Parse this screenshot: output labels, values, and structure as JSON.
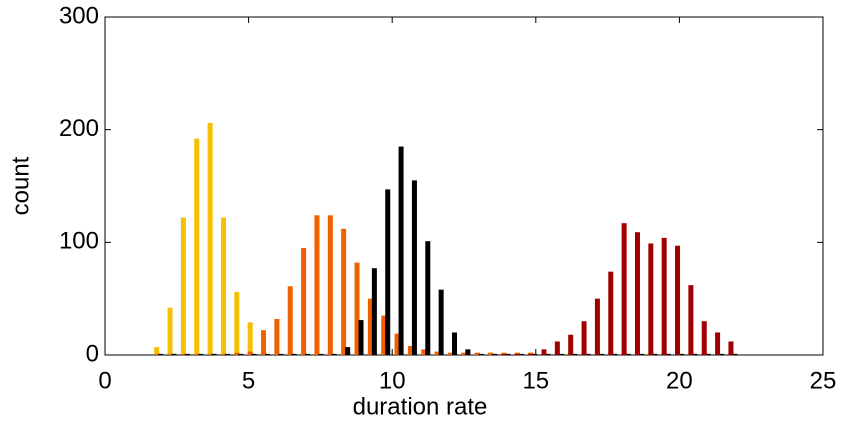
{
  "chart_data": {
    "type": "bar",
    "xlabel": "duration rate",
    "ylabel": "count",
    "x": [
      1.8,
      2.265,
      2.73,
      3.195,
      3.66,
      4.125,
      4.59,
      5.055,
      5.52,
      5.985,
      6.45,
      6.915,
      7.38,
      7.845,
      8.31,
      8.775,
      9.24,
      9.705,
      10.17,
      10.635,
      11.1,
      11.565,
      12.03,
      12.495,
      12.96,
      13.425,
      13.89,
      14.355,
      14.82,
      15.285,
      15.75,
      16.215,
      16.68,
      17.145,
      17.61,
      18.075,
      18.54,
      19.005,
      19.47,
      19.935,
      20.4,
      20.865,
      21.33,
      21.795
    ],
    "series": [
      {
        "color": "#f5c000",
        "values": [
          7,
          42,
          122,
          192,
          206,
          122,
          56,
          29,
          3,
          2,
          2,
          2,
          2,
          2,
          2,
          2,
          2,
          2,
          2,
          2,
          2,
          2,
          2,
          2,
          2,
          2,
          2,
          2,
          2,
          2,
          2,
          2,
          2,
          2,
          2,
          2,
          2,
          2,
          2,
          2,
          2,
          2,
          2,
          2
        ]
      },
      {
        "color": "#f06000",
        "values": [
          1,
          1,
          1,
          1,
          1,
          1,
          2,
          3,
          22,
          32,
          61,
          95,
          124,
          124,
          112,
          82,
          50,
          35,
          19,
          8,
          5,
          3,
          2,
          2,
          2,
          2,
          2,
          2,
          2,
          2,
          2,
          2,
          2,
          2,
          2,
          2,
          2,
          2,
          2,
          2,
          2,
          2,
          2,
          2
        ]
      },
      {
        "color": "#000000",
        "values": [
          1,
          1,
          1,
          1,
          1,
          1,
          1,
          1,
          1,
          1,
          1,
          1,
          1,
          1,
          7,
          31,
          77,
          147,
          185,
          155,
          101,
          58,
          20,
          5,
          1,
          1,
          1,
          1,
          1,
          1,
          1,
          1,
          1,
          1,
          1,
          1,
          1,
          1,
          1,
          1,
          1,
          1,
          1,
          1
        ]
      },
      {
        "color": "#a00000",
        "values": [
          0,
          0,
          0,
          0,
          0,
          0,
          0,
          0,
          0,
          0,
          0,
          0,
          0,
          0,
          0,
          0,
          0,
          0,
          0,
          0,
          0,
          0,
          0,
          0,
          0,
          0,
          1,
          1,
          1,
          5,
          12,
          18,
          30,
          50,
          74,
          117,
          109,
          99,
          104,
          97,
          62,
          30,
          20,
          12
        ]
      }
    ],
    "xlim": [
      0,
      25
    ],
    "xticks": [
      0,
      5,
      10,
      15,
      20,
      25
    ],
    "ylim": [
      0,
      300
    ],
    "yticks": [
      0,
      100,
      200,
      300
    ]
  }
}
